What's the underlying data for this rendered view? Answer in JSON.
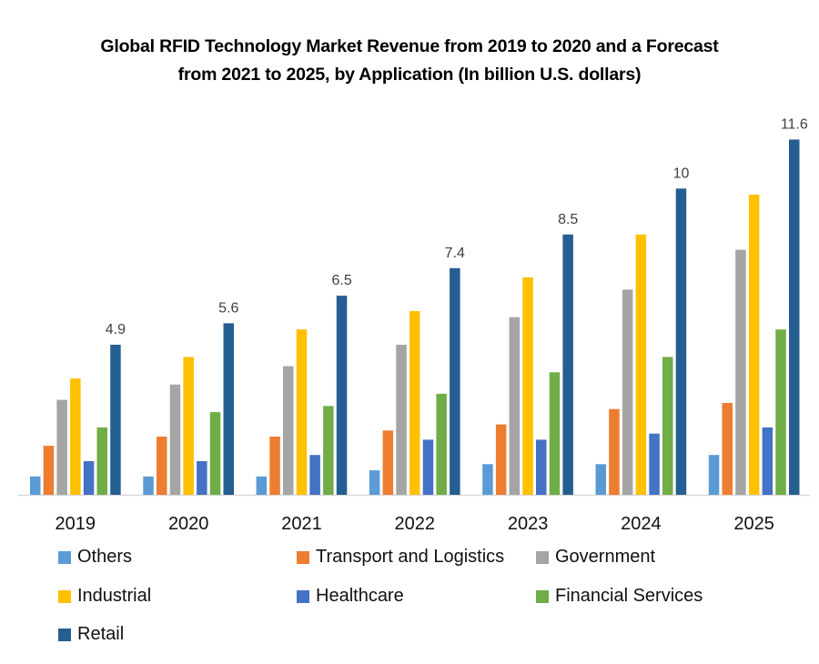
{
  "chart_data": {
    "type": "bar",
    "title_lines": [
      "Global RFID Technology Market Revenue from 2019 to 2020 and a Forecast",
      "from 2021 to 2025, by Application  (In billion U.S. dollars)"
    ],
    "xlabel": "",
    "ylabel": "",
    "ylim": [
      0,
      12.5
    ],
    "grid": false,
    "legend_position": "bottom",
    "categories": [
      "2019",
      "2020",
      "2021",
      "2022",
      "2023",
      "2024",
      "2025"
    ],
    "series": [
      {
        "name": "Others",
        "color": "#5B9BD5",
        "values": [
          0.6,
          0.6,
          0.6,
          0.8,
          1.0,
          1.0,
          1.3
        ]
      },
      {
        "name": "Transport and Logistics",
        "color": "#ED7D31",
        "values": [
          1.6,
          1.9,
          1.9,
          2.1,
          2.3,
          2.8,
          3.0
        ]
      },
      {
        "name": "Government",
        "color": "#A5A5A5",
        "values": [
          3.1,
          3.6,
          4.2,
          4.9,
          5.8,
          6.7,
          8.0
        ]
      },
      {
        "name": "Industrial",
        "color": "#FFC000",
        "values": [
          3.8,
          4.5,
          5.4,
          6.0,
          7.1,
          8.5,
          9.8
        ]
      },
      {
        "name": "Healthcare",
        "color": "#4472C4",
        "values": [
          1.1,
          1.1,
          1.3,
          1.8,
          1.8,
          2.0,
          2.2
        ]
      },
      {
        "name": "Financial Services",
        "color": "#70AD47",
        "values": [
          2.2,
          2.7,
          2.9,
          3.3,
          4.0,
          4.5,
          5.4
        ]
      },
      {
        "name": "Retail",
        "color": "#255E91",
        "values": [
          4.9,
          5.6,
          6.5,
          7.4,
          8.5,
          10,
          11.6
        ],
        "data_labels": [
          "4.9",
          "5.6",
          "6.5",
          "7.4",
          "8.5",
          "10",
          "11.6"
        ]
      }
    ]
  }
}
